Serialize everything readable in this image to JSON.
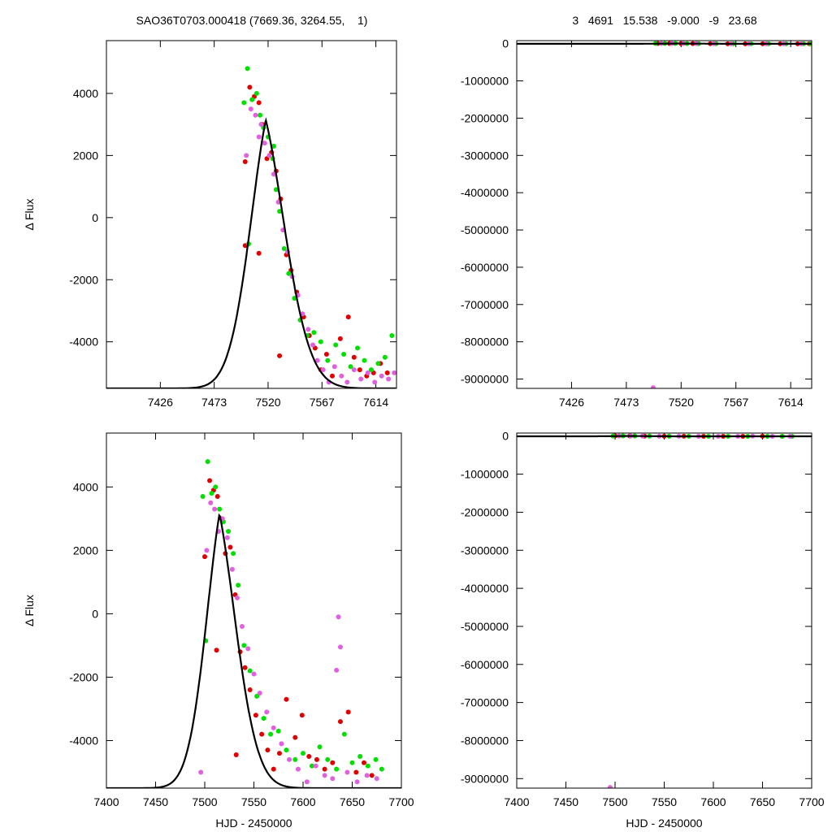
{
  "header": {
    "left": "SAO36T0703.000418 (7669.36, 3264.55,    1)",
    "right": "3   4691   15.538   -9.000   -9   23.68"
  },
  "colors": {
    "red": "#e00000",
    "green": "#00e000",
    "magenta": "#e060e0",
    "model": "#000000"
  },
  "chart_data": [
    {
      "id": "top-left",
      "type": "scatter",
      "ylabel": "Δ Flux",
      "xlabel": "",
      "xlim": [
        7379,
        7632
      ],
      "ylim": [
        -5500,
        5700
      ],
      "xticks": [
        7426,
        7473,
        7520,
        7567,
        7614
      ],
      "xtick_labels": [
        "7426",
        "7473",
        "7520",
        "7567",
        "7614"
      ],
      "yticks": [
        -4000,
        -2000,
        0,
        2000,
        4000
      ],
      "ytick_labels": [
        "-4000",
        "-2000",
        "0",
        "2000",
        "4000"
      ],
      "model": {
        "peak_x": 7518,
        "amplitude": 8650,
        "baseline": -5500,
        "tau_rise": 15,
        "tau_decay": 18
      },
      "series": [
        {
          "color": "red",
          "x": [
            7500,
            7504,
            7508,
            7512,
            7515,
            7519,
            7523,
            7527,
            7531,
            7536,
            7540,
            7545,
            7551,
            7556,
            7561,
            7566,
            7571,
            7576,
            7583,
            7590,
            7595,
            7600,
            7606,
            7612,
            7618,
            7624,
            7500,
            7512,
            7530
          ],
          "y": [
            1800,
            4200,
            3900,
            3700,
            3000,
            1900,
            2100,
            1500,
            600,
            -1200,
            -1700,
            -2400,
            -3200,
            -3800,
            -4200,
            -4900,
            -4400,
            -5100,
            -3900,
            -3200,
            -4500,
            -4900,
            -5100,
            -5000,
            -4700,
            -5000,
            -900,
            -1150,
            -4450
          ]
        },
        {
          "color": "green",
          "x": [
            7499,
            7502,
            7506,
            7510,
            7513,
            7516,
            7520,
            7524,
            7527,
            7530,
            7534,
            7538,
            7543,
            7548,
            7554,
            7560,
            7566,
            7572,
            7579,
            7586,
            7592,
            7598,
            7604,
            7610,
            7616,
            7622,
            7628,
            7503,
            7525
          ],
          "y": [
            3700,
            4800,
            3800,
            4000,
            3300,
            2900,
            2600,
            1900,
            900,
            200,
            -1000,
            -1800,
            -2600,
            -3300,
            -3800,
            -3700,
            -4000,
            -4600,
            -4100,
            -4400,
            -4800,
            -4200,
            -4600,
            -4900,
            -4700,
            -4500,
            -3800,
            -850,
            2300
          ]
        },
        {
          "color": "magenta",
          "x": [
            7501,
            7505,
            7509,
            7512,
            7514,
            7517,
            7521,
            7525,
            7529,
            7533,
            7537,
            7541,
            7546,
            7550,
            7555,
            7559,
            7563,
            7568,
            7573,
            7578,
            7584,
            7589,
            7595,
            7601,
            7607,
            7613,
            7619,
            7625,
            7630
          ],
          "y": [
            2000,
            3500,
            3300,
            2600,
            3000,
            2400,
            2000,
            1400,
            500,
            -400,
            -1100,
            -1900,
            -2500,
            -3100,
            -3600,
            -4100,
            -4600,
            -4900,
            -5300,
            -4800,
            -5100,
            -5300,
            -4900,
            -5200,
            -5000,
            -5300,
            -5100,
            -5200,
            -5000
          ]
        }
      ]
    },
    {
      "id": "top-right",
      "type": "scatter",
      "ylabel": "",
      "xlabel": "",
      "xlim": [
        7379,
        7632
      ],
      "ylim": [
        -9250000,
        80000
      ],
      "xticks": [
        7426,
        7473,
        7520,
        7567,
        7614
      ],
      "xtick_labels": [
        "7426",
        "7473",
        "7520",
        "7567",
        "7614"
      ],
      "yticks": [
        0,
        -1000000,
        -2000000,
        -3000000,
        -4000000,
        -5000000,
        -6000000,
        -7000000,
        -8000000,
        -9000000
      ],
      "ytick_labels": [
        "0",
        "-1000000",
        "-2000000",
        "-3000000",
        "-4000000",
        "-5000000",
        "-6000000",
        "-7000000",
        "-8000000",
        "-9000000"
      ],
      "model": {
        "peak_x": 7518,
        "amplitude": 8650,
        "baseline": -5500,
        "tau_rise": 15,
        "tau_decay": 18
      },
      "series": [
        {
          "color": "red",
          "x": [
            7500,
            7510,
            7520,
            7530,
            7545,
            7560,
            7575,
            7590,
            7605,
            7620,
            7630
          ],
          "y": [
            4000,
            3000,
            2000,
            0,
            -2000,
            -4000,
            -5000,
            -4500,
            -5000,
            -4800,
            -5000
          ]
        },
        {
          "color": "green",
          "x": [
            7498,
            7506,
            7515,
            7525,
            7535,
            7550,
            7565,
            7580,
            7595,
            7610,
            7625,
            7631
          ],
          "y": [
            3000,
            4800,
            2500,
            1500,
            -500,
            -2500,
            -4000,
            -4500,
            -4800,
            -4600,
            -4500,
            -4000
          ]
        },
        {
          "color": "magenta",
          "x": [
            7503,
            7512,
            7522,
            7533,
            7548,
            7563,
            7578,
            7593,
            7608,
            7623,
            7496
          ],
          "y": [
            3500,
            3000,
            1800,
            -300,
            -2800,
            -4500,
            -5000,
            -5200,
            -5100,
            -5200,
            -9230000
          ]
        }
      ]
    },
    {
      "id": "bottom-left",
      "type": "scatter",
      "ylabel": "Δ Flux",
      "xlabel": "HJD - 2450000",
      "xlim": [
        7400,
        7700
      ],
      "ylim": [
        -5500,
        5700
      ],
      "xticks": [
        7400,
        7450,
        7500,
        7550,
        7600,
        7650,
        7700
      ],
      "xtick_labels": [
        "7400",
        "7450",
        "7500",
        "7550",
        "7600",
        "7650",
        "7700"
      ],
      "yticks": [
        -4000,
        -2000,
        0,
        2000,
        4000
      ],
      "ytick_labels": [
        "-4000",
        "-2000",
        "0",
        "2000",
        "4000"
      ],
      "model": {
        "peak_x": 7515,
        "amplitude": 8650,
        "baseline": -5500,
        "tau_rise": 15,
        "tau_decay": 18
      },
      "series": [
        {
          "color": "red",
          "x": [
            7500,
            7505,
            7509,
            7513,
            7517,
            7521,
            7526,
            7531,
            7536,
            7541,
            7546,
            7552,
            7558,
            7564,
            7570,
            7576,
            7583,
            7592,
            7599,
            7606,
            7614,
            7622,
            7630,
            7638,
            7646,
            7654,
            7662,
            7670,
            7512,
            7532
          ],
          "y": [
            1800,
            4200,
            3900,
            3700,
            3000,
            1900,
            2100,
            600,
            -1200,
            -1700,
            -2400,
            -3200,
            -3800,
            -4300,
            -4900,
            -4400,
            -2700,
            -3900,
            -3200,
            -4500,
            -4600,
            -4900,
            -4700,
            -3400,
            -3100,
            -5000,
            -4700,
            -5100,
            -1150,
            -4450
          ]
        },
        {
          "color": "green",
          "x": [
            7498,
            7503,
            7507,
            7511,
            7515,
            7519,
            7524,
            7529,
            7534,
            7540,
            7546,
            7553,
            7560,
            7567,
            7575,
            7583,
            7592,
            7600,
            7609,
            7617,
            7625,
            7634,
            7642,
            7650,
            7658,
            7666,
            7674,
            7680,
            7501
          ],
          "y": [
            3700,
            4800,
            3800,
            4000,
            3300,
            2900,
            2600,
            1900,
            900,
            -1000,
            -1800,
            -2600,
            -3300,
            -3800,
            -3700,
            -4300,
            -4600,
            -4400,
            -4800,
            -4200,
            -4600,
            -4900,
            -3800,
            -4700,
            -4500,
            -4800,
            -4600,
            -4900,
            -850
          ]
        },
        {
          "color": "magenta",
          "x": [
            7502,
            7506,
            7510,
            7514,
            7518,
            7523,
            7528,
            7533,
            7538,
            7544,
            7550,
            7556,
            7563,
            7570,
            7578,
            7586,
            7595,
            7604,
            7613,
            7622,
            7630,
            7636,
            7638,
            7634,
            7645,
            7655,
            7665,
            7675,
            7496
          ],
          "y": [
            2000,
            3500,
            3300,
            2600,
            3000,
            2400,
            1400,
            500,
            -400,
            -1100,
            -1900,
            -2500,
            -3100,
            -3600,
            -4100,
            -4600,
            -4900,
            -5300,
            -4800,
            -5100,
            -5200,
            -100,
            -1050,
            -1780,
            -5000,
            -5300,
            -5100,
            -5200,
            -5000
          ]
        }
      ]
    },
    {
      "id": "bottom-right",
      "type": "scatter",
      "ylabel": "",
      "xlabel": "HJD - 2450000",
      "xlim": [
        7400,
        7700
      ],
      "ylim": [
        -9250000,
        80000
      ],
      "xticks": [
        7400,
        7450,
        7500,
        7550,
        7600,
        7650,
        7700
      ],
      "xtick_labels": [
        "7400",
        "7450",
        "7500",
        "7550",
        "7600",
        "7650",
        "7700"
      ],
      "yticks": [
        0,
        -1000000,
        -2000000,
        -3000000,
        -4000000,
        -5000000,
        -6000000,
        -7000000,
        -8000000,
        -9000000
      ],
      "ytick_labels": [
        "0",
        "-1000000",
        "-2000000",
        "-3000000",
        "-4000000",
        "-5000000",
        "-6000000",
        "-7000000",
        "-8000000",
        "-9000000"
      ],
      "model": {
        "peak_x": 7515,
        "amplitude": 8650,
        "baseline": -5500,
        "tau_rise": 15,
        "tau_decay": 18
      },
      "series": [
        {
          "color": "red",
          "x": [
            7500,
            7515,
            7530,
            7550,
            7570,
            7590,
            7610,
            7630,
            7650,
            7670
          ],
          "y": [
            4000,
            3000,
            500,
            -2000,
            -4000,
            -4500,
            -4800,
            -4700,
            -3500,
            -5000
          ]
        },
        {
          "color": "green",
          "x": [
            7498,
            7508,
            7520,
            7535,
            7555,
            7575,
            7595,
            7615,
            7635,
            7655,
            7670,
            7680
          ],
          "y": [
            3000,
            4800,
            2500,
            500,
            -2500,
            -4000,
            -4500,
            -4800,
            -4600,
            -4700,
            -4800,
            -4900
          ]
        },
        {
          "color": "magenta",
          "x": [
            7504,
            7516,
            7528,
            7545,
            7565,
            7585,
            7605,
            7625,
            7640,
            7660,
            7678,
            7495
          ],
          "y": [
            3500,
            2600,
            1000,
            -1500,
            -3500,
            -4800,
            -5100,
            -5200,
            -1000,
            -5200,
            -5000,
            -9230000
          ]
        }
      ]
    }
  ]
}
